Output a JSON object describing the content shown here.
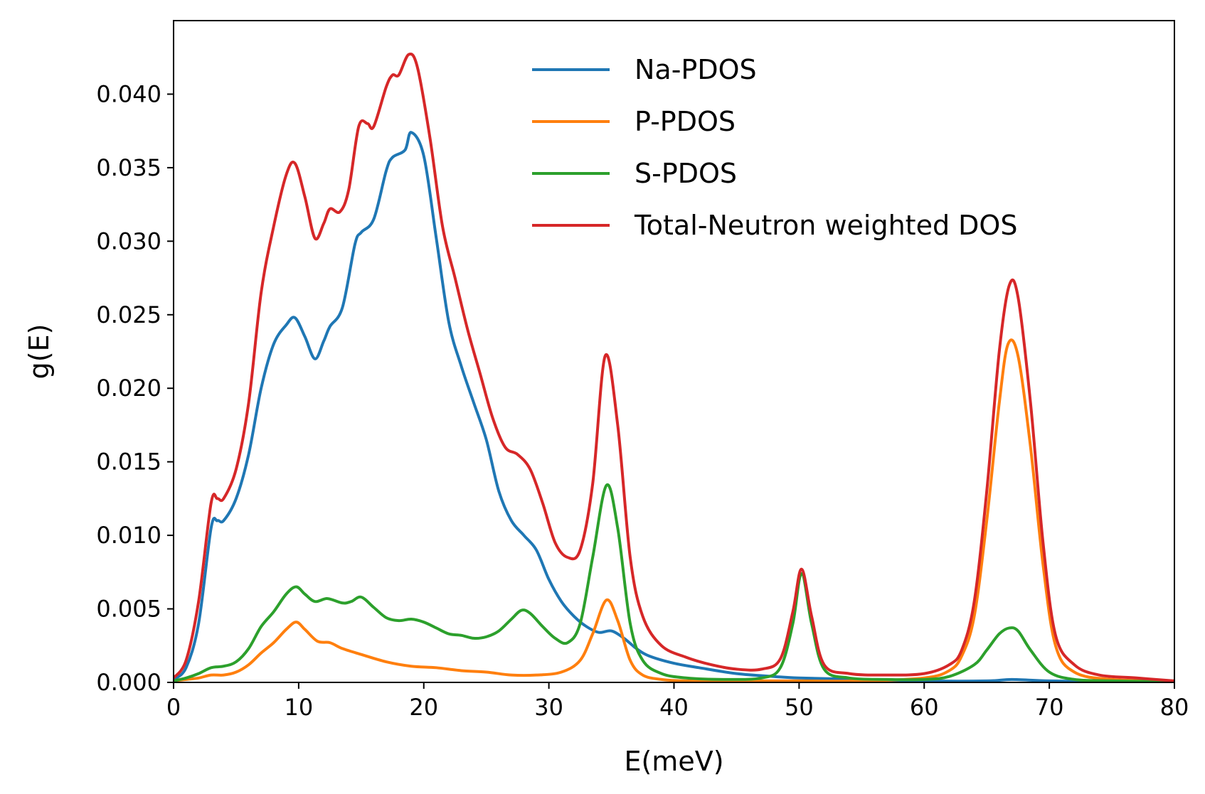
{
  "chart_data": {
    "type": "line",
    "xlabel": "E(meV)",
    "ylabel": "g(E)",
    "xlim": [
      0,
      80
    ],
    "ylim": [
      0,
      0.045
    ],
    "xticks": [
      0,
      10,
      20,
      30,
      40,
      50,
      60,
      70,
      80
    ],
    "xtick_labels": [
      "0",
      "10",
      "20",
      "30",
      "40",
      "50",
      "60",
      "70",
      "80"
    ],
    "yticks": [
      0,
      0.005,
      0.01,
      0.015,
      0.02,
      0.025,
      0.03,
      0.035,
      0.04
    ],
    "ytick_labels": [
      "0.000",
      "0.005",
      "0.010",
      "0.015",
      "0.020",
      "0.025",
      "0.030",
      "0.035",
      "0.040"
    ],
    "grid": false,
    "legend_position": "top-right",
    "series": [
      {
        "name": "Na-PDOS",
        "color": "#1f77b4",
        "x": [
          0,
          1,
          2,
          3,
          3.5,
          4,
          5,
          6,
          7,
          8,
          9,
          9.7,
          10.5,
          11.3,
          12,
          12.5,
          13.5,
          14.5,
          15,
          16,
          17,
          17.5,
          18.5,
          19,
          20,
          21,
          22,
          23,
          24,
          25,
          26,
          27,
          28,
          29,
          30,
          31,
          32,
          33,
          34,
          35,
          36,
          37,
          38,
          40,
          42,
          45,
          48,
          50,
          55,
          60,
          65,
          67,
          70,
          75,
          80
        ],
        "y": [
          0.0002,
          0.001,
          0.004,
          0.0105,
          0.011,
          0.011,
          0.0125,
          0.0155,
          0.02,
          0.023,
          0.0243,
          0.0248,
          0.0235,
          0.022,
          0.0232,
          0.0242,
          0.0255,
          0.0298,
          0.0306,
          0.0315,
          0.0348,
          0.0357,
          0.0362,
          0.0374,
          0.0358,
          0.0302,
          0.0245,
          0.0215,
          0.019,
          0.0165,
          0.013,
          0.011,
          0.01,
          0.009,
          0.007,
          0.0055,
          0.0045,
          0.0038,
          0.0034,
          0.0035,
          0.003,
          0.0023,
          0.0018,
          0.0013,
          0.001,
          0.0006,
          0.0004,
          0.0003,
          0.0002,
          0.0001,
          0.0001,
          0.0002,
          0.0001,
          5e-05,
          3e-05
        ]
      },
      {
        "name": "P-PDOS",
        "color": "#ff7f0e",
        "x": [
          0,
          1,
          2,
          3,
          4,
          5,
          6,
          7,
          8,
          9,
          9.8,
          10.5,
          11.5,
          12.5,
          13.5,
          15,
          17,
          19,
          21,
          23,
          25,
          27,
          29,
          31,
          32.5,
          33.5,
          34.6,
          35.5,
          36.5,
          37.5,
          39,
          41,
          45,
          50,
          55,
          60,
          62,
          63,
          64,
          65,
          66,
          66.7,
          67.5,
          68.5,
          69.5,
          70.5,
          72,
          75,
          80
        ],
        "y": [
          0.0001,
          0.0002,
          0.0003,
          0.0005,
          0.0005,
          0.0007,
          0.0012,
          0.002,
          0.0027,
          0.0036,
          0.0041,
          0.0036,
          0.0028,
          0.0027,
          0.0023,
          0.0019,
          0.0014,
          0.0011,
          0.001,
          0.0008,
          0.0007,
          0.0005,
          0.0005,
          0.0007,
          0.0015,
          0.0033,
          0.0056,
          0.0042,
          0.0015,
          0.0005,
          0.0002,
          0.0001,
          0.0001,
          0.0001,
          0.0001,
          0.0003,
          0.0008,
          0.0018,
          0.0045,
          0.011,
          0.019,
          0.023,
          0.0222,
          0.016,
          0.008,
          0.0025,
          0.0007,
          0.0002,
          0.0001
        ]
      },
      {
        "name": "S-PDOS",
        "color": "#2ca02c",
        "x": [
          0,
          1,
          2,
          3,
          4,
          5,
          6,
          7,
          8,
          9,
          9.8,
          10.5,
          11.3,
          12.3,
          13.5,
          14.2,
          15,
          16,
          17,
          18,
          19,
          20,
          21,
          22,
          23,
          24,
          25,
          26,
          27,
          27.8,
          28.5,
          29.5,
          30.5,
          31.5,
          32.5,
          33.5,
          34.6,
          35.5,
          36.5,
          37.5,
          39,
          41,
          44,
          47,
          48.5,
          49.5,
          50.2,
          51,
          52,
          54,
          57,
          60,
          62,
          64,
          65,
          66,
          66.8,
          67.5,
          68.5,
          70,
          72,
          75,
          80
        ],
        "y": [
          0.0001,
          0.0003,
          0.0006,
          0.001,
          0.0011,
          0.0014,
          0.0023,
          0.0038,
          0.0048,
          0.006,
          0.0065,
          0.006,
          0.0055,
          0.0057,
          0.0054,
          0.0055,
          0.0058,
          0.0051,
          0.0044,
          0.0042,
          0.0043,
          0.0041,
          0.0037,
          0.0033,
          0.0032,
          0.003,
          0.0031,
          0.0035,
          0.0043,
          0.0049,
          0.0047,
          0.0038,
          0.003,
          0.0027,
          0.004,
          0.0085,
          0.0134,
          0.0105,
          0.004,
          0.0015,
          0.0006,
          0.0003,
          0.0002,
          0.0003,
          0.001,
          0.004,
          0.0074,
          0.004,
          0.0009,
          0.0003,
          0.0002,
          0.0002,
          0.0004,
          0.0012,
          0.0022,
          0.0033,
          0.0037,
          0.0035,
          0.0022,
          0.0007,
          0.0002,
          0.0001,
          5e-05
        ]
      },
      {
        "name": "Total-Neutron weighted DOS",
        "color": "#d62728",
        "x": [
          0,
          1,
          2,
          3,
          3.5,
          4,
          5,
          6,
          7,
          8,
          9,
          9.7,
          10.5,
          11.3,
          12,
          12.5,
          13.3,
          14,
          14.8,
          15.5,
          16,
          17,
          17.5,
          18,
          18.8,
          19.5,
          20.5,
          21.5,
          22.5,
          23.5,
          24.5,
          25.5,
          26.5,
          27.5,
          28.5,
          29.5,
          30.5,
          31.5,
          32.5,
          33.5,
          34.5,
          35.5,
          36.5,
          37.5,
          39,
          41,
          43,
          45,
          47,
          48.5,
          49.5,
          50.2,
          51,
          52,
          54,
          57,
          60,
          62,
          63,
          64,
          65,
          66,
          66.8,
          67.5,
          68.5,
          69.5,
          70.5,
          72,
          74,
          77,
          80
        ],
        "y": [
          0.0003,
          0.0015,
          0.0055,
          0.0122,
          0.0125,
          0.0125,
          0.0145,
          0.019,
          0.0265,
          0.031,
          0.0345,
          0.0353,
          0.033,
          0.0302,
          0.0312,
          0.0322,
          0.032,
          0.0335,
          0.0378,
          0.038,
          0.0378,
          0.0405,
          0.0413,
          0.0413,
          0.0427,
          0.0418,
          0.037,
          0.031,
          0.0275,
          0.024,
          0.021,
          0.018,
          0.016,
          0.0155,
          0.0145,
          0.0122,
          0.0095,
          0.0085,
          0.009,
          0.0135,
          0.0222,
          0.0175,
          0.0085,
          0.0045,
          0.0025,
          0.0017,
          0.0012,
          0.0009,
          0.0009,
          0.0016,
          0.0048,
          0.0077,
          0.0045,
          0.0012,
          0.0006,
          0.0005,
          0.0006,
          0.0012,
          0.0022,
          0.0055,
          0.013,
          0.0225,
          0.027,
          0.0262,
          0.019,
          0.0095,
          0.0032,
          0.0012,
          0.0005,
          0.0003,
          0.0001
        ]
      }
    ]
  }
}
